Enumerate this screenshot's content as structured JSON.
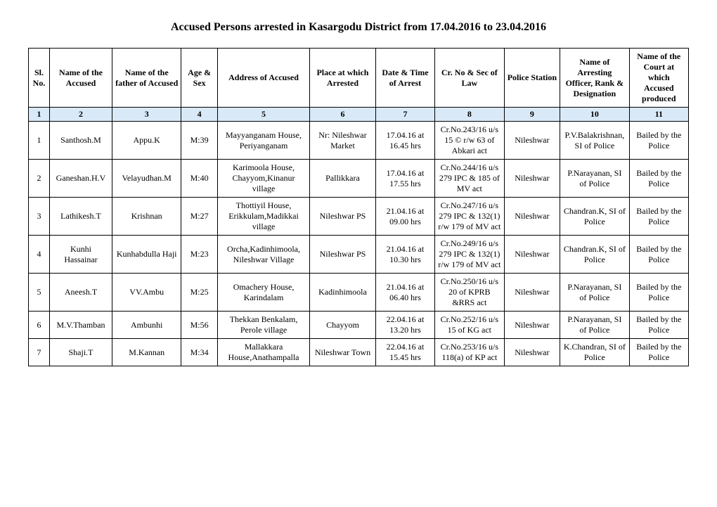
{
  "title": "Accused Persons arrested in   Kasargodu  District from   17.04.2016 to 23.04.2016",
  "headers": {
    "c1": "Sl. No.",
    "c2": "Name of the Accused",
    "c3": "Name of the father of Accused",
    "c4": "Age & Sex",
    "c5": "Address of Accused",
    "c6": "Place at which Arrested",
    "c7": "Date & Time of Arrest",
    "c8": "Cr. No & Sec of Law",
    "c9": "Police Station",
    "c10": "Name of Arresting Officer, Rank & Designation",
    "c11": "Name of the Court at which Accused produced"
  },
  "colnums": [
    "1",
    "2",
    "3",
    "4",
    "5",
    "6",
    "7",
    "8",
    "9",
    "10",
    "11"
  ],
  "rows": [
    {
      "sl": "1",
      "name": "Santhosh.M",
      "father": "Appu.K",
      "age": "M:39",
      "addr": "Mayyanganam House, Periyanganam",
      "place": "Nr: Nileshwar Market",
      "date": "17.04.16 at 16.45 hrs",
      "crno": "Cr.No.243/16 u/s 15 © r/w 63 of Abkari act",
      "ps": "Nileshwar",
      "officer": "P.V.Balakrishnan,   SI of Police",
      "court": "Bailed by the Police"
    },
    {
      "sl": "2",
      "name": "Ganeshan.H.V",
      "father": "Velayudhan.M",
      "age": "M:40",
      "addr": "Karimoola House, Chayyom,Kinanur village",
      "place": "Pallikkara",
      "date": "17.04.16 at 17.55 hrs",
      "crno": "Cr.No.244/16 u/s 279 IPC & 185 of MV act",
      "ps": "Nileshwar",
      "officer": "P.Narayanan, SI of Police",
      "court": "Bailed by the Police"
    },
    {
      "sl": "3",
      "name": "Lathikesh.T",
      "father": "Krishnan",
      "age": "M:27",
      "addr": "Thottiyil House, Erikkulam,Madikkai village",
      "place": "Nileshwar PS",
      "date": "21.04.16 at 09.00 hrs",
      "crno": "Cr.No.247/16 u/s 279 IPC & 132(1) r/w 179 of MV act",
      "ps": "Nileshwar",
      "officer": "Chandran.K, SI of Police",
      "court": "Bailed by the Police"
    },
    {
      "sl": "4",
      "name": "Kunhi Hassainar",
      "father": "Kunhabdulla Haji",
      "age": "M:23",
      "addr": "Orcha,Kadinhimoola, Nileshwar Village",
      "place": "Nileshwar PS",
      "date": "21.04.16 at 10.30 hrs",
      "crno": "Cr.No.249/16 u/s 279 IPC & 132(1) r/w 179 of MV act",
      "ps": "Nileshwar",
      "officer": "Chandran.K, SI of Police",
      "court": "Bailed by the Police"
    },
    {
      "sl": "5",
      "name": "Aneesh.T",
      "father": "VV.Ambu",
      "age": "M:25",
      "addr": "Omachery House, Karindalam",
      "place": "Kadinhimoola",
      "date": "21.04.16 at 06.40 hrs",
      "crno": "Cr.No.250/16 u/s 20 of KPRB &RRS act",
      "ps": "Nileshwar",
      "officer": "P.Narayanan, SI of Police",
      "court": "Bailed by the Police"
    },
    {
      "sl": "6",
      "name": "M.V.Thamban",
      "father": "Ambunhi",
      "age": "M:56",
      "addr": "Thekkan Benkalam, Perole village",
      "place": "Chayyom",
      "date": "22.04.16 at 13.20 hrs",
      "crno": "Cr.No.252/16 u/s 15 of KG act",
      "ps": "Nileshwar",
      "officer": "P.Narayanan, SI of Police",
      "court": "Bailed by the Police"
    },
    {
      "sl": "7",
      "name": "Shaji.T",
      "father": "M.Kannan",
      "age": "M:34",
      "addr": "Mallakkara House,Anathampalla",
      "place": "Nileshwar Town",
      "date": "22.04.16 at 15.45 hrs",
      "crno": "Cr.No.253/16 u/s 118(a) of KP act",
      "ps": "Nileshwar",
      "officer": "K.Chandran, SI of Police",
      "court": "Bailed by the Police"
    }
  ]
}
